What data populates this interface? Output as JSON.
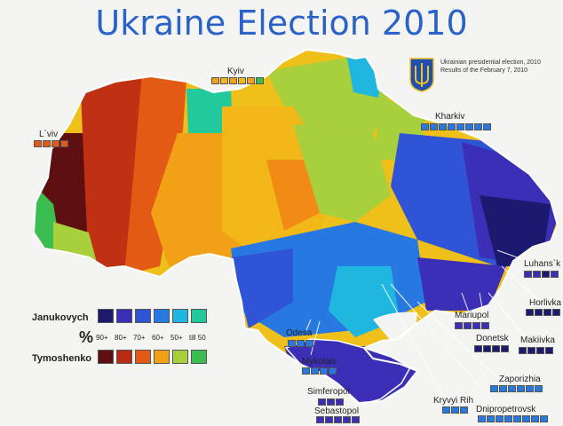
{
  "title": "Ukraine Election 2010",
  "subtitle_lines": [
    "Ukrainian presidential election, 2010",
    "Results of the February 7, 2010"
  ],
  "legend": {
    "candidate_1": "Janukovych",
    "candidate_2": "Tymoshenko",
    "percent_sign": "%",
    "ticks": [
      "90+",
      "80+",
      "70+",
      "60+",
      "50+",
      "till 50"
    ],
    "janukovych_colors": [
      "#1b1a6e",
      "#3b2fb8",
      "#2f55d6",
      "#2778e0",
      "#1fb6e0",
      "#22c99a"
    ],
    "tymoshenko_colors": [
      "#5e1010",
      "#b82a14",
      "#e25a14",
      "#f2a016",
      "#a8cf3c",
      "#3bbd52"
    ]
  },
  "cities": [
    {
      "label": "Kyiv"
    },
    {
      "label": "L`viv"
    },
    {
      "label": "Kharkiv"
    },
    {
      "label": "Luhans`k"
    },
    {
      "label": "Horlivka"
    },
    {
      "label": "Mariupol"
    },
    {
      "label": "Donetsk"
    },
    {
      "label": "Makiivka"
    },
    {
      "label": "Odesa"
    },
    {
      "label": "Mykolaiv"
    },
    {
      "label": "Zaporizhia"
    },
    {
      "label": "Simferopol"
    },
    {
      "label": "Kryvyi Rih"
    },
    {
      "label": "Dnipropetrovsk"
    },
    {
      "label": "Sebastopol"
    }
  ],
  "colors": {
    "title": "#2a63c8",
    "background": "#f4f4f2"
  }
}
